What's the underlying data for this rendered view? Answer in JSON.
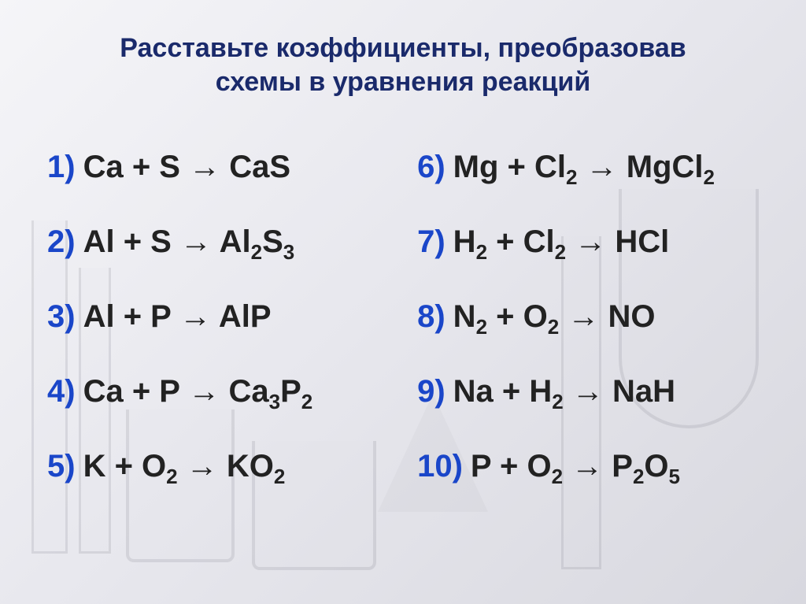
{
  "title_line1": "Расставьте коэффициенты, преобразовав",
  "title_line2": "схемы в уравнения реакций",
  "title_fontsize": 34,
  "title_color": "#1a2a6b",
  "number_color": "#1a46c9",
  "eq_color": "#222222",
  "eq_fontsize": 40,
  "background_gradient": [
    "#f5f5f8",
    "#e8e8ee",
    "#d8d8df"
  ],
  "left": [
    {
      "n": "1)",
      "parts": [
        "Ca + S ",
        "→",
        " CaS"
      ]
    },
    {
      "n": "2)",
      "parts": [
        "Al + S ",
        "→",
        " Al",
        {
          "sub": "2"
        },
        "S",
        {
          "sub": "3"
        }
      ]
    },
    {
      "n": "3)",
      "parts": [
        "Al + P ",
        "→",
        " AlP"
      ]
    },
    {
      "n": "4)",
      "parts": [
        "Ca + P ",
        "→",
        " Ca",
        {
          "sub": "3"
        },
        "P",
        {
          "sub": "2"
        }
      ]
    },
    {
      "n": "5)",
      "parts": [
        "K + O",
        {
          "sub": "2"
        },
        " ",
        "→",
        " KO",
        {
          "sub": "2"
        }
      ]
    }
  ],
  "right": [
    {
      "n": "6)",
      "parts": [
        "Mg + Cl",
        {
          "sub": "2"
        },
        " ",
        "→",
        " MgCl",
        {
          "sub": "2"
        }
      ]
    },
    {
      "n": "7)",
      "parts": [
        "H",
        {
          "sub": "2"
        },
        " + Cl",
        {
          "sub": "2"
        },
        " ",
        "→",
        " HCl"
      ]
    },
    {
      "n": "8)",
      "parts": [
        "N",
        {
          "sub": "2"
        },
        " + O",
        {
          "sub": "2"
        },
        " ",
        "→",
        " NO"
      ]
    },
    {
      "n": "9)",
      "parts": [
        "Na + H",
        {
          "sub": "2"
        },
        " ",
        "→",
        " NaH"
      ]
    },
    {
      "n": "10)",
      "parts": [
        "P + O",
        {
          "sub": "2"
        },
        " ",
        "→",
        " P",
        {
          "sub": "2"
        },
        "O",
        {
          "sub": "5"
        }
      ]
    }
  ]
}
